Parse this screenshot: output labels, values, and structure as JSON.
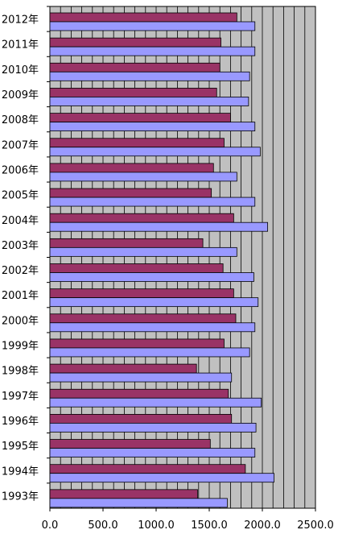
{
  "chart_data": {
    "type": "bar",
    "orientation": "horizontal",
    "title": "",
    "xlabel": "",
    "ylabel": "",
    "categories": [
      "2012年",
      "2011年",
      "2010年",
      "2009年",
      "2008年",
      "2007年",
      "2006年",
      "2005年",
      "2004年",
      "2003年",
      "2002年",
      "2001年",
      "2000年",
      "1999年",
      "1998年",
      "1997年",
      "1996年",
      "1995年",
      "1994年",
      "1993年"
    ],
    "series": [
      {
        "color": "#993366",
        "values": [
          1760,
          1610,
          1600,
          1570,
          1700,
          1640,
          1540,
          1520,
          1730,
          1440,
          1630,
          1730,
          1750,
          1640,
          1380,
          1680,
          1710,
          1510,
          1840,
          1390
        ]
      },
      {
        "color": "#9999ff",
        "values": [
          1930,
          1930,
          1880,
          1870,
          1930,
          1980,
          1760,
          1930,
          2050,
          1760,
          1920,
          1960,
          1930,
          1880,
          1710,
          1990,
          1940,
          1930,
          2110,
          1670
        ]
      }
    ],
    "xlim": [
      0,
      2500
    ],
    "x_ticks": [
      "0.0",
      "500.0",
      "1000.0",
      "1500.0",
      "2000.0",
      "2500.0"
    ],
    "minor_grid_step": 100,
    "plot_background": "#c0c0c0",
    "grid": true,
    "legend": "none"
  }
}
